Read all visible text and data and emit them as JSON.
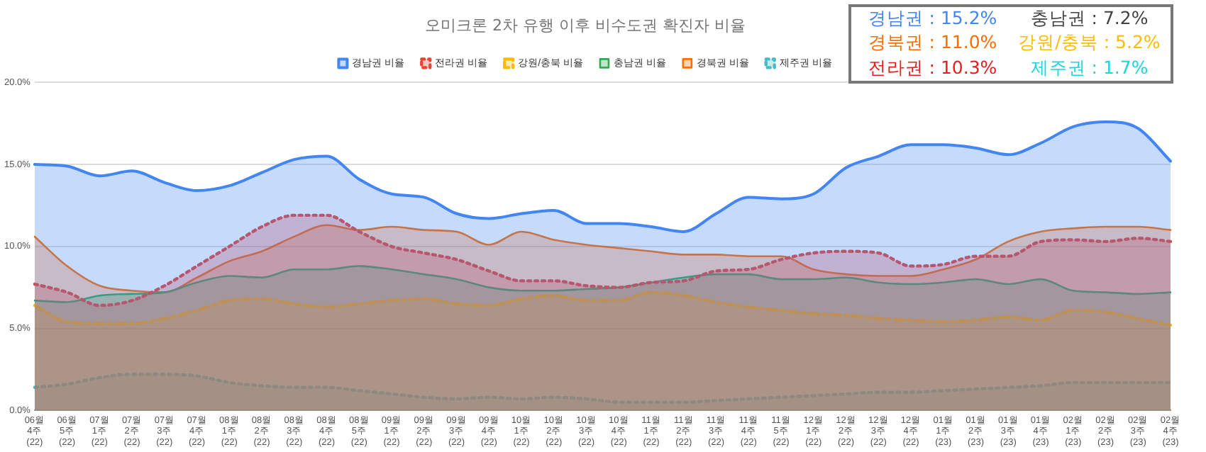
{
  "chart_data": {
    "type": "area",
    "title": "오미크론 2차 유행 이후 비수도권 확진자 비율",
    "categories": [
      "06월 4주 (22)",
      "06월 5주 (22)",
      "07월 1주 (22)",
      "07월 2주 (22)",
      "07월 3주 (22)",
      "07월 4주 (22)",
      "08월 1주 (22)",
      "08월 2주 (22)",
      "08월 3주 (22)",
      "08월 4주 (22)",
      "08월 5주 (22)",
      "09월 1주 (22)",
      "09월 2주 (22)",
      "09월 3주 (22)",
      "09월 4주 (22)",
      "10월 1주 (22)",
      "10월 2주 (22)",
      "10월 3주 (22)",
      "10월 4주 (22)",
      "11월 1주 (22)",
      "11월 2주 (22)",
      "11월 3주 (22)",
      "11월 4주 (22)",
      "11월 5주 (22)",
      "12월 1주 (22)",
      "12월 2주 (22)",
      "12월 3주 (22)",
      "12월 4주 (22)",
      "01월 1주 (23)",
      "01월 2주 (23)",
      "01월 3주 (23)",
      "01월 4주 (23)",
      "02월 1주 (23)",
      "02월 2주 (23)",
      "02월 3주 (23)",
      "02월 4주 (23)"
    ],
    "series": [
      {
        "name": "경남권 비율",
        "color": "#4285f4",
        "line_style": "solid",
        "values": [
          15.0,
          14.9,
          14.3,
          14.6,
          13.9,
          13.4,
          13.7,
          14.5,
          15.3,
          15.5,
          14.1,
          13.2,
          13.0,
          12.0,
          11.7,
          12.0,
          12.2,
          11.4,
          11.4,
          11.2,
          10.9,
          12.0,
          13.0,
          12.9,
          13.2,
          14.8,
          15.5,
          16.2,
          16.2,
          16.0,
          15.6,
          16.3,
          17.3,
          17.6,
          17.2,
          15.2
        ]
      },
      {
        "name": "전라권 비율",
        "color": "#ea4335",
        "line_style": "dotted",
        "values": [
          7.7,
          7.2,
          6.4,
          6.7,
          7.6,
          8.8,
          10.0,
          11.2,
          11.9,
          11.9,
          10.9,
          10.0,
          9.6,
          9.2,
          8.5,
          7.9,
          7.9,
          7.6,
          7.5,
          7.8,
          7.9,
          8.5,
          8.6,
          9.2,
          9.6,
          9.7,
          9.6,
          8.8,
          8.9,
          9.4,
          9.4,
          10.3,
          10.4,
          10.3,
          10.5,
          10.3
        ]
      },
      {
        "name": "강원/충북 비율",
        "color": "#fbbc04",
        "line_style": "dashed",
        "values": [
          6.4,
          5.4,
          5.3,
          5.3,
          5.6,
          6.1,
          6.7,
          6.8,
          6.5,
          6.3,
          6.5,
          6.7,
          6.8,
          6.5,
          6.4,
          6.8,
          7.0,
          6.7,
          6.7,
          7.2,
          7.0,
          6.6,
          6.3,
          6.1,
          5.9,
          5.8,
          5.6,
          5.5,
          5.4,
          5.5,
          5.7,
          5.5,
          6.1,
          6.0,
          5.6,
          5.2
        ]
      },
      {
        "name": "충남권 비율",
        "color": "#34a853",
        "line_style": "solid",
        "values": [
          6.7,
          6.6,
          7.0,
          7.1,
          7.2,
          7.8,
          8.2,
          8.1,
          8.6,
          8.6,
          8.8,
          8.6,
          8.3,
          8.0,
          7.5,
          7.3,
          7.3,
          7.4,
          7.5,
          7.8,
          8.1,
          8.3,
          8.3,
          8.0,
          8.0,
          8.1,
          7.8,
          7.7,
          7.8,
          8.0,
          7.7,
          8.0,
          7.3,
          7.2,
          7.1,
          7.2
        ]
      },
      {
        "name": "경북권 비율",
        "color": "#ff6d01",
        "line_style": "solid",
        "values": [
          10.6,
          8.8,
          7.6,
          7.3,
          7.2,
          8.1,
          9.1,
          9.7,
          10.6,
          11.3,
          11.0,
          11.2,
          11.0,
          10.9,
          10.1,
          10.9,
          10.4,
          10.1,
          9.9,
          9.7,
          9.5,
          9.5,
          9.4,
          9.4,
          8.6,
          8.3,
          8.2,
          8.2,
          8.6,
          9.2,
          10.3,
          10.9,
          11.1,
          11.2,
          11.2,
          11.0
        ]
      },
      {
        "name": "제주권 비율",
        "color": "#46bdc6",
        "line_style": "dotted",
        "values": [
          1.4,
          1.6,
          2.0,
          2.2,
          2.2,
          2.1,
          1.7,
          1.5,
          1.4,
          1.4,
          1.2,
          1.0,
          0.8,
          0.7,
          0.8,
          0.7,
          0.8,
          0.7,
          0.5,
          0.5,
          0.5,
          0.6,
          0.7,
          0.8,
          0.9,
          1.0,
          1.1,
          1.1,
          1.2,
          1.3,
          1.4,
          1.5,
          1.7,
          1.7,
          1.7,
          1.7
        ]
      }
    ],
    "ylim": [
      0,
      20
    ],
    "yticks": [
      {
        "value": 0,
        "label": "0.0%"
      },
      {
        "value": 5,
        "label": "5.0%"
      },
      {
        "value": 10,
        "label": "10.0%"
      },
      {
        "value": 15,
        "label": "15.0%"
      },
      {
        "value": 20,
        "label": "20.0%"
      }
    ],
    "grid": "y",
    "legend": "top",
    "marker": "none",
    "annotations": [
      "경남권 : 15.2%",
      "충남권 : 7.2%",
      "경북권 : 11.0%",
      "강원/충북 : 5.2%",
      "전라권 : 10.3%",
      "제주권 : 1.7%"
    ]
  }
}
